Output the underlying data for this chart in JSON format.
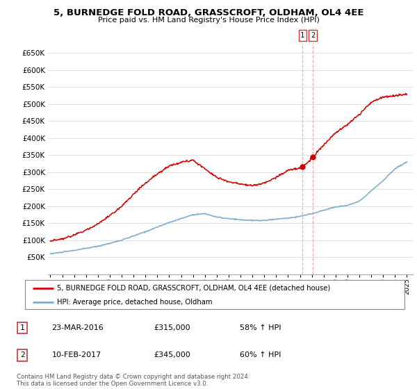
{
  "title": "5, BURNEDGE FOLD ROAD, GRASSCROFT, OLDHAM, OL4 4EE",
  "subtitle": "Price paid vs. HM Land Registry's House Price Index (HPI)",
  "legend_line1": "5, BURNEDGE FOLD ROAD, GRASSCROFT, OLDHAM, OL4 4EE (detached house)",
  "legend_line2": "HPI: Average price, detached house, Oldham",
  "transaction1_date": "23-MAR-2016",
  "transaction1_price": "£315,000",
  "transaction1_hpi": "58% ↑ HPI",
  "transaction2_date": "10-FEB-2017",
  "transaction2_price": "£345,000",
  "transaction2_hpi": "60% ↑ HPI",
  "footer": "Contains HM Land Registry data © Crown copyright and database right 2024.\nThis data is licensed under the Open Government Licence v3.0.",
  "red_color": "#cc0000",
  "blue_color": "#7aaacc",
  "grid_color": "#e0e0e0",
  "ylim_min": 0,
  "ylim_max": 680000,
  "yticks": [
    50000,
    100000,
    150000,
    200000,
    250000,
    300000,
    350000,
    400000,
    450000,
    500000,
    550000,
    600000,
    650000
  ],
  "vline1_x": 2016.22,
  "vline2_x": 2017.09,
  "marker1_y": 315000,
  "marker2_y": 345000,
  "xmin": 1994.8,
  "xmax": 2025.5
}
